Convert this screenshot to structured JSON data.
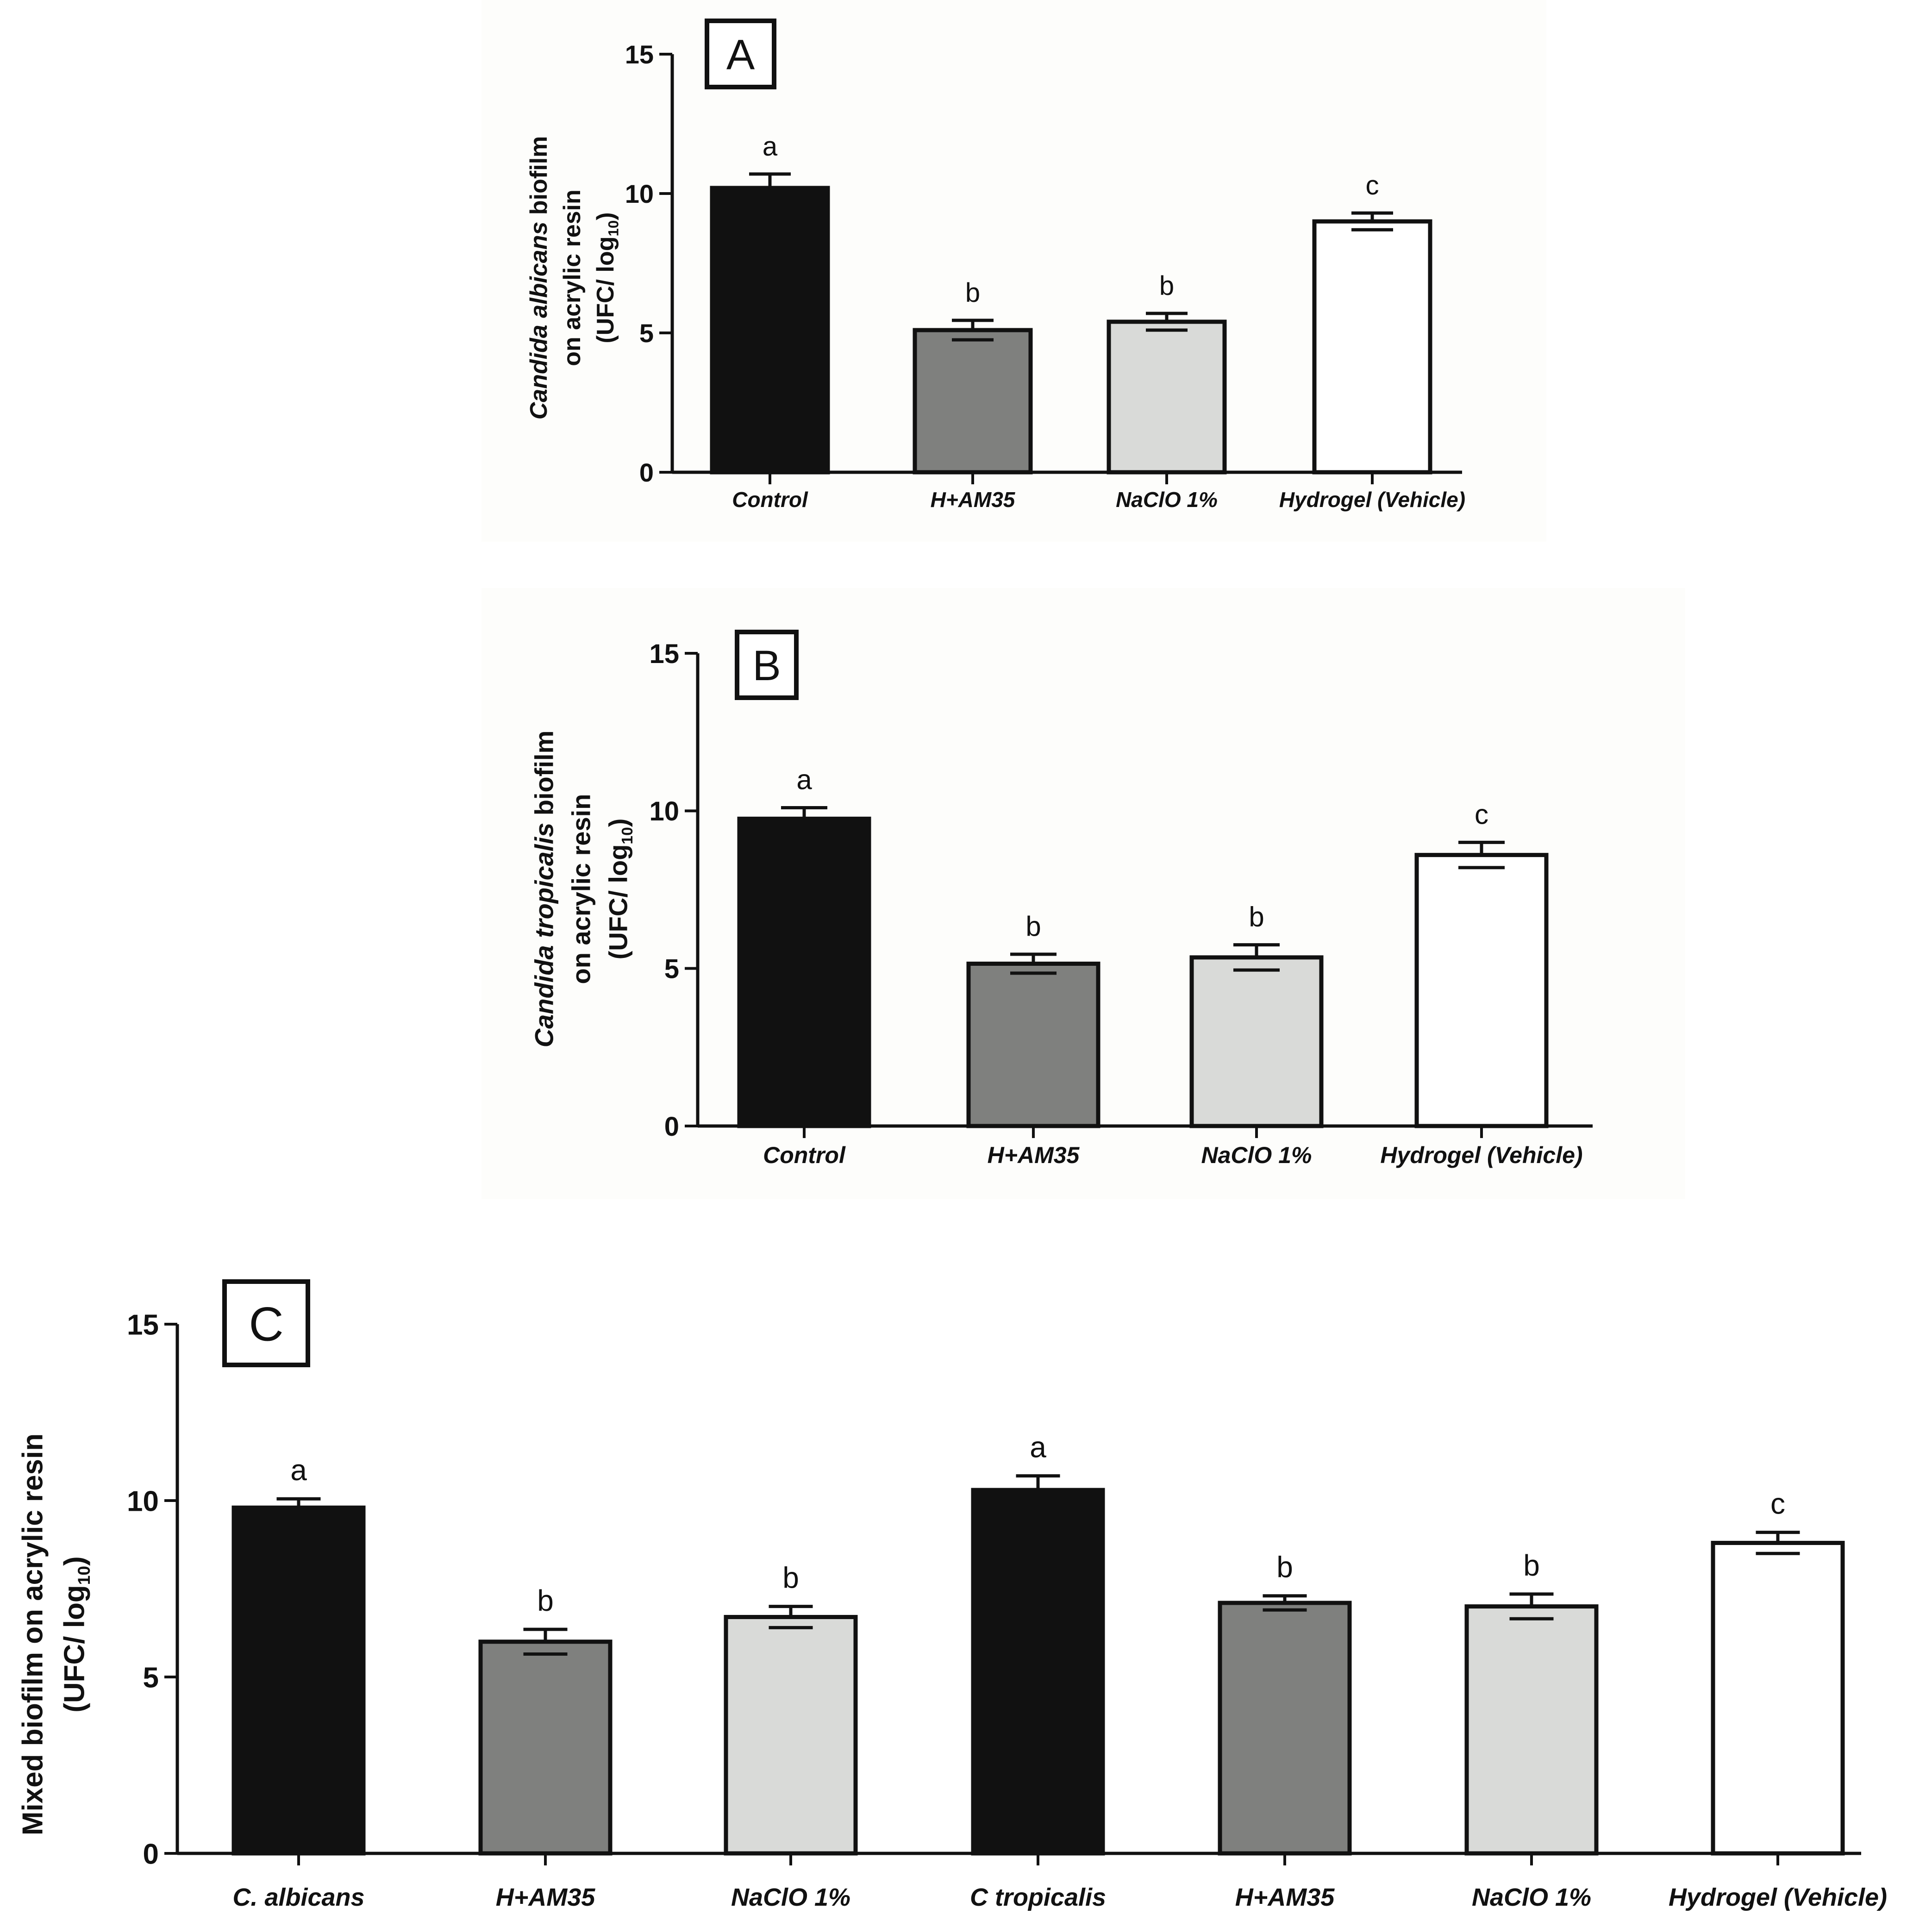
{
  "colors": {
    "black": "#111111",
    "dark_gray": "#7f807e",
    "light_gray": "#d9dad8",
    "white": "#ffffff"
  },
  "chart_data": [
    {
      "type": "bar",
      "panel_label": "A",
      "ylabel_lines": [
        [
          {
            "text": "Candida albicans",
            "italic": true
          },
          {
            "text": " biofilm",
            "italic": false
          }
        ],
        [
          {
            "text": "on acrylic resin",
            "italic": false
          }
        ],
        [
          {
            "text": "(UFC/ log",
            "italic": false
          },
          {
            "text": "10",
            "sub": true
          },
          {
            "text": ")",
            "italic": false
          }
        ]
      ],
      "categories": [
        "Control",
        "H+AM35",
        "NaClO 1%",
        "Hydrogel (Vehicle)"
      ],
      "values": [
        10.2,
        5.1,
        5.4,
        9.0
      ],
      "errors": [
        0.5,
        0.35,
        0.3,
        0.3
      ],
      "significance": [
        "a",
        "b",
        "b",
        "c"
      ],
      "fill_keys": [
        "black",
        "dark_gray",
        "light_gray",
        "white"
      ],
      "yticks": [
        "0",
        "5",
        "10",
        "15"
      ],
      "ylim": [
        0,
        15
      ]
    },
    {
      "type": "bar",
      "panel_label": "B",
      "ylabel_lines": [
        [
          {
            "text": "Candida tropicalis",
            "italic": true
          },
          {
            "text": " biofilm",
            "italic": false
          }
        ],
        [
          {
            "text": "on acrylic resin",
            "italic": false
          }
        ],
        [
          {
            "text": "(UFC/ log",
            "italic": false
          },
          {
            "text": "10",
            "sub": true
          },
          {
            "text": ")",
            "italic": false
          }
        ]
      ],
      "categories": [
        "Control",
        "H+AM35",
        "NaClO 1%",
        "Hydrogel (Vehicle)"
      ],
      "values": [
        9.75,
        5.15,
        5.35,
        8.6
      ],
      "errors": [
        0.35,
        0.3,
        0.4,
        0.4
      ],
      "significance": [
        "a",
        "b",
        "b",
        "c"
      ],
      "fill_keys": [
        "black",
        "dark_gray",
        "light_gray",
        "white"
      ],
      "yticks": [
        "0",
        "5",
        "10",
        "15"
      ],
      "ylim": [
        0,
        15
      ]
    },
    {
      "type": "bar",
      "panel_label": "C",
      "ylabel_lines": [
        [
          {
            "text": "Mixed biofilm  on acrylic resin",
            "italic": false
          }
        ],
        [
          {
            "text": "(UFC/ log",
            "italic": false
          },
          {
            "text": "10",
            "sub": true
          },
          {
            "text": ")",
            "italic": false
          }
        ]
      ],
      "categories": [
        "C. albicans",
        "H+AM35",
        "NaClO 1%",
        "C tropicalis",
        "H+AM35",
        "NaClO 1%",
        "Hydrogel (Vehicle)"
      ],
      "values": [
        9.8,
        6.0,
        6.7,
        10.3,
        7.1,
        7.0,
        8.8
      ],
      "errors": [
        0.25,
        0.35,
        0.3,
        0.4,
        0.2,
        0.35,
        0.3
      ],
      "significance": [
        "a",
        "b",
        "b",
        "a",
        "b",
        "b",
        "c"
      ],
      "fill_keys": [
        "black",
        "dark_gray",
        "light_gray",
        "black",
        "dark_gray",
        "light_gray",
        "white"
      ],
      "yticks": [
        "0",
        "5",
        "10",
        "15"
      ],
      "ylim": [
        0,
        15
      ]
    }
  ]
}
